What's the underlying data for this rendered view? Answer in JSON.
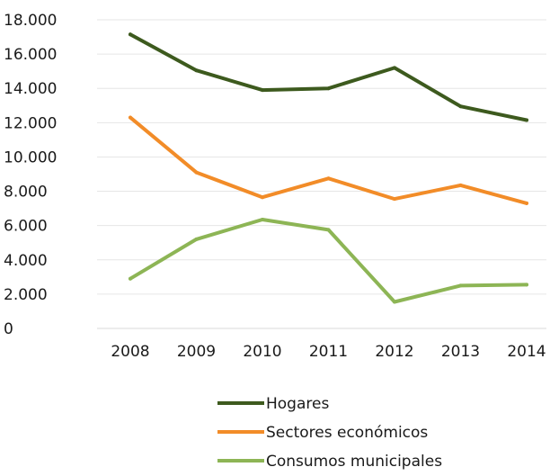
{
  "chart_data": {
    "type": "line",
    "categories": [
      "2008",
      "2009",
      "2010",
      "2011",
      "2012",
      "2013",
      "2014"
    ],
    "ylim": [
      0,
      18000
    ],
    "yticks": [
      {
        "value": 0,
        "label": "0"
      },
      {
        "value": 2000,
        "label": "2.000"
      },
      {
        "value": 4000,
        "label": "4.000"
      },
      {
        "value": 6000,
        "label": "6.000"
      },
      {
        "value": 8000,
        "label": "8.000"
      },
      {
        "value": 10000,
        "label": "10.000"
      },
      {
        "value": 12000,
        "label": "12.000"
      },
      {
        "value": 14000,
        "label": "14.000"
      },
      {
        "value": 16000,
        "label": "16.000"
      },
      {
        "value": 18000,
        "label": "18.000"
      }
    ],
    "grid": true,
    "legend_position": "bottom",
    "series": [
      {
        "name": "Hogares",
        "color": "#3d5a1e",
        "values": [
          17150,
          15050,
          13900,
          14000,
          15200,
          12950,
          12150
        ]
      },
      {
        "name": "Sectores económicos",
        "color": "#f28c28",
        "values": [
          12300,
          9100,
          7650,
          8750,
          7550,
          8350,
          7300
        ]
      },
      {
        "name": "Consumos municipales",
        "color": "#8db555",
        "values": [
          2900,
          5200,
          6350,
          5750,
          1550,
          2500,
          2550
        ]
      }
    ]
  }
}
